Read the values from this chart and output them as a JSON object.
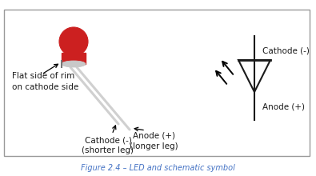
{
  "fig_width": 3.95,
  "fig_height": 2.2,
  "dpi": 100,
  "bg_color": "#ffffff",
  "border_color": "#999999",
  "text_color": "#1a1a1a",
  "caption_color": "#4472c4",
  "caption": "Figure 2.4 – LED and schematic symbol",
  "label_flat_side": "Flat side of rim\non cathode side",
  "label_cathode": "Cathode (-)\n(shorter leg)",
  "label_anode": "Anode (+)\n(longer leg)",
  "label_cathode_sym": "Cathode (-)",
  "label_anode_sym": "Anode (+)",
  "led_body_color": "#cc2020",
  "led_rim_color": "#c8c8c8",
  "led_leg_color": "#d0d0d0",
  "symbol_color": "#1a1a1a",
  "font_size_labels": 7.5,
  "font_size_caption": 7.0
}
